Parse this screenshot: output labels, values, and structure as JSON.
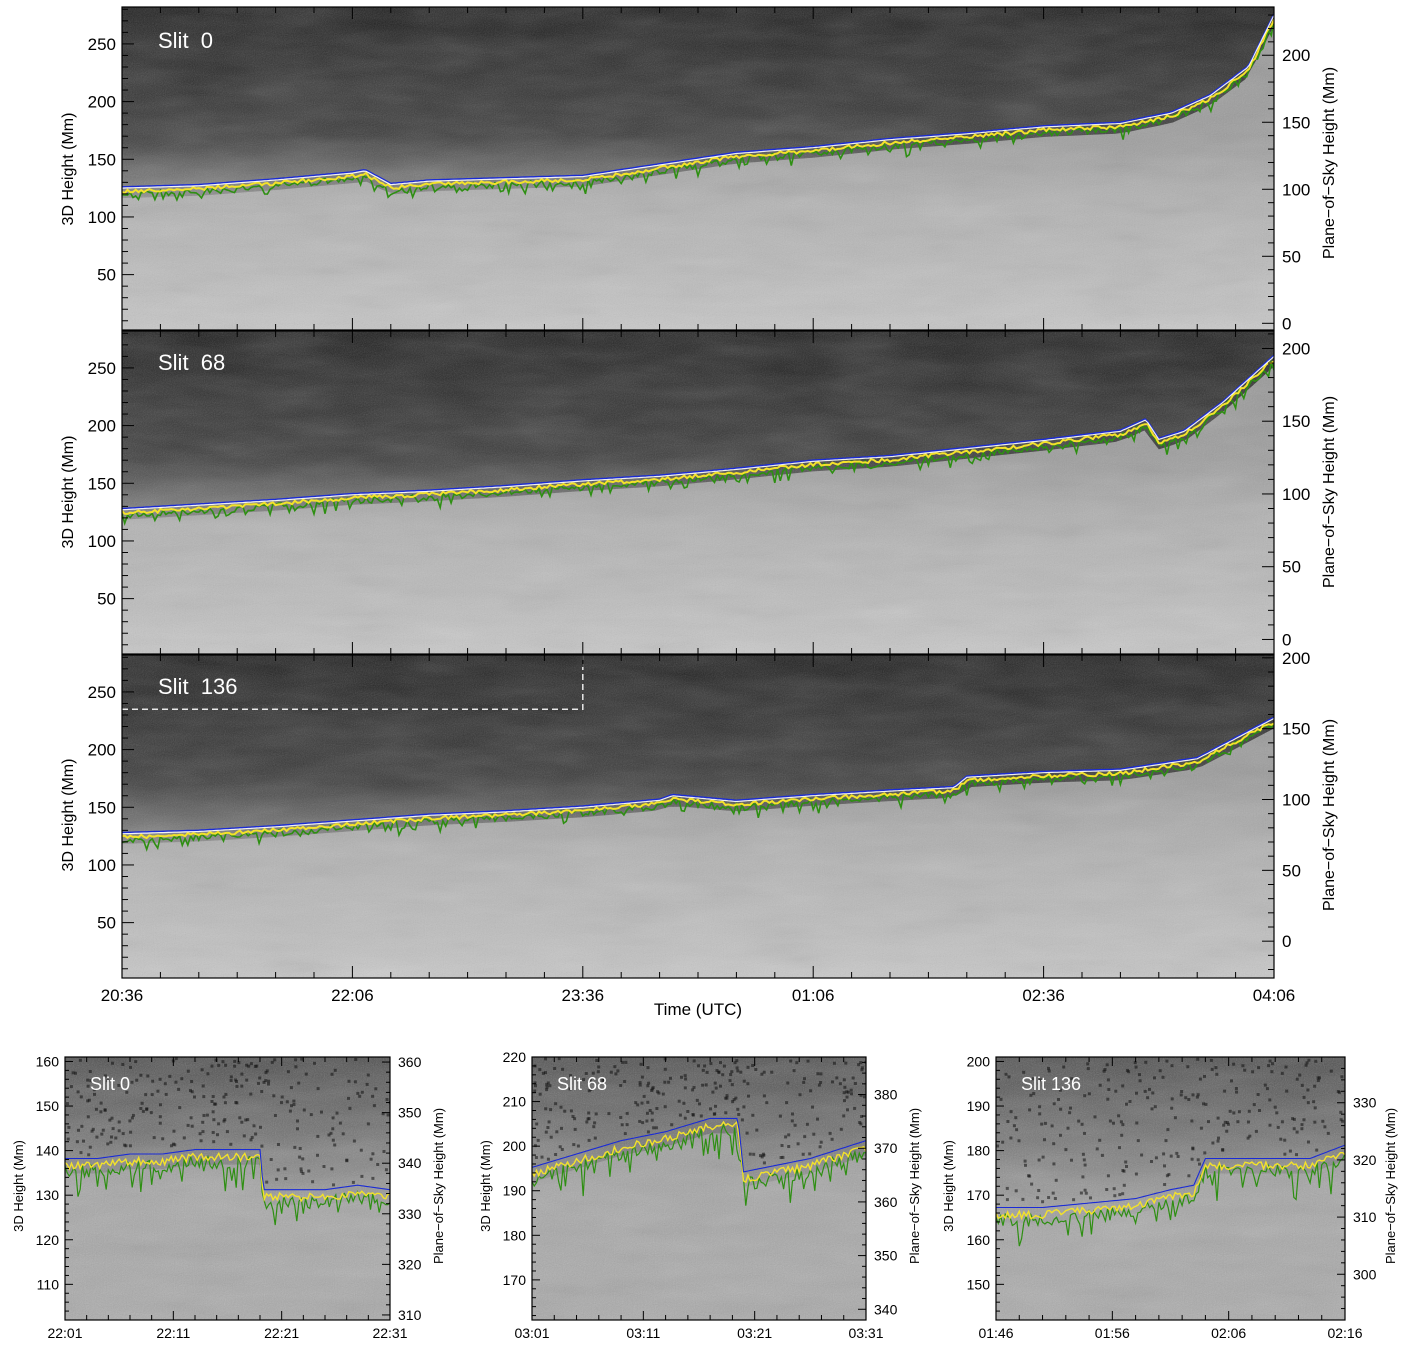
{
  "figure": {
    "time_axis_label": "Time (UTC)",
    "slit_prefix": "Slit",
    "colors": {
      "blue": "#1a2bd6",
      "yellow": "#f3e22a",
      "green": "#2e8f12",
      "white": "#ffffff",
      "dashed": "#e8e8e8"
    }
  },
  "chart_data": [
    {
      "type": "line",
      "panel": "top-1",
      "slit_label": "Slit  0",
      "xlabel": "",
      "ylabel": "3D Height (Mm)",
      "ylabel_right": "Plane−of−Sky Height (Mm)",
      "x_ticks": [
        "20:36",
        "22:06",
        "23:36",
        "01:06",
        "02:36",
        "04:06"
      ],
      "x_tick_labels_shown": false,
      "xlim_minutes": [
        0,
        450
      ],
      "ylim": [
        2,
        282
      ],
      "yticks": [
        50,
        100,
        150,
        200,
        250
      ],
      "right_ylim": [
        -5,
        236
      ],
      "right_yticks": [
        0,
        50,
        100,
        150,
        200
      ],
      "series": [],
      "x_minutes": [
        0,
        30,
        60,
        90,
        95,
        105,
        120,
        150,
        180,
        210,
        240,
        270,
        300,
        330,
        360,
        390,
        410,
        425,
        440,
        450
      ],
      "front_height_mm": [
        125,
        127,
        132,
        138,
        140,
        128,
        131,
        133,
        135,
        145,
        155,
        160,
        167,
        172,
        178,
        181,
        190,
        205,
        230,
        275
      ]
    },
    {
      "type": "line",
      "panel": "top-2",
      "slit_label": "Slit  68",
      "xlabel": "",
      "ylabel": "3D Height (Mm)",
      "ylabel_right": "Plane−of−Sky Height (Mm)",
      "x_ticks": [
        "20:36",
        "22:06",
        "23:36",
        "01:06",
        "02:36",
        "04:06"
      ],
      "x_tick_labels_shown": false,
      "xlim_minutes": [
        0,
        450
      ],
      "ylim": [
        2,
        282
      ],
      "yticks": [
        50,
        100,
        150,
        200,
        250
      ],
      "right_ylim": [
        -10,
        212
      ],
      "right_yticks": [
        0,
        50,
        100,
        150,
        200
      ],
      "series": [],
      "x_minutes": [
        0,
        30,
        60,
        90,
        120,
        150,
        180,
        210,
        240,
        270,
        300,
        330,
        360,
        390,
        400,
        405,
        415,
        430,
        450
      ],
      "front_height_mm": [
        127,
        131,
        135,
        140,
        143,
        147,
        152,
        156,
        162,
        169,
        173,
        180,
        187,
        195,
        205,
        188,
        195,
        220,
        260
      ]
    },
    {
      "type": "line",
      "panel": "top-3",
      "slit_label": "Slit  136",
      "xlabel": "Time (UTC)",
      "ylabel": "3D Height (Mm)",
      "ylabel_right": "Plane−of−Sky Height (Mm)",
      "x_ticks": [
        "20:36",
        "22:06",
        "23:36",
        "01:06",
        "02:36",
        "04:06"
      ],
      "x_tick_labels_shown": true,
      "xlim_minutes": [
        0,
        450
      ],
      "ylim": [
        2,
        282
      ],
      "yticks": [
        50,
        100,
        150,
        200,
        250
      ],
      "right_ylim": [
        -26,
        202
      ],
      "right_yticks": [
        0,
        50,
        100,
        150,
        200
      ],
      "series": [],
      "zoom_box_minutes": [
        0,
        180
      ],
      "zoom_box_height_mm": [
        235,
        282
      ],
      "x_minutes": [
        0,
        30,
        60,
        90,
        120,
        150,
        180,
        210,
        215,
        240,
        270,
        300,
        325,
        330,
        360,
        390,
        420,
        450
      ],
      "front_height_mm": [
        127,
        129,
        133,
        138,
        143,
        146,
        150,
        156,
        160,
        155,
        160,
        164,
        167,
        176,
        180,
        182,
        192,
        227
      ]
    },
    {
      "type": "line",
      "panel": "zoom-1",
      "slit_label": "Slit 0",
      "xlabel": "",
      "ylabel": "3D Height (Mm)",
      "ylabel_right": "Plane−of−Sky Height (Mm)",
      "x_ticks": [
        "22:01",
        "22:11",
        "22:21",
        "22:31"
      ],
      "xlim_minutes": [
        0,
        30
      ],
      "ylim": [
        102,
        161
      ],
      "yticks": [
        110,
        120,
        130,
        140,
        150,
        160
      ],
      "right_ylim": [
        309,
        361
      ],
      "right_yticks": [
        310,
        320,
        330,
        340,
        350,
        360
      ],
      "series": [],
      "x_minutes": [
        0,
        3,
        6,
        9,
        12,
        15,
        18,
        18.3,
        21,
        24,
        27,
        30
      ],
      "front_height_mm": [
        138,
        138,
        139,
        139,
        140,
        140,
        140,
        131,
        131,
        131,
        132,
        131
      ]
    },
    {
      "type": "line",
      "panel": "zoom-2",
      "slit_label": "Slit 68",
      "xlabel": "",
      "ylabel": "3D Height (Mm)",
      "ylabel_right": "Plane−of−Sky Height (Mm)",
      "x_ticks": [
        "03:01",
        "03:11",
        "03:21",
        "03:31"
      ],
      "xlim_minutes": [
        0,
        30
      ],
      "ylim": [
        161,
        220
      ],
      "yticks": [
        170,
        180,
        190,
        200,
        210,
        220
      ],
      "right_ylim": [
        338,
        387
      ],
      "right_yticks": [
        340,
        350,
        360,
        370,
        380
      ],
      "series": [],
      "x_minutes": [
        0,
        4,
        8,
        12,
        16,
        18.5,
        19,
        21,
        25,
        30
      ],
      "front_height_mm": [
        195,
        198,
        201,
        203,
        206,
        206,
        194,
        195,
        197,
        201
      ]
    },
    {
      "type": "line",
      "panel": "zoom-3",
      "slit_label": "Slit 136",
      "xlabel": "",
      "ylabel": "3D Height (Mm)",
      "ylabel_right": "Plane−of−Sky Height (Mm)",
      "x_ticks": [
        "01:46",
        "01:56",
        "02:06",
        "02:16"
      ],
      "xlim_minutes": [
        0,
        30
      ],
      "ylim": [
        142,
        201
      ],
      "yticks": [
        150,
        160,
        170,
        180,
        190,
        200
      ],
      "right_ylim": [
        292,
        338
      ],
      "right_yticks": [
        300,
        310,
        320,
        330
      ],
      "series": [],
      "x_minutes": [
        0,
        4,
        8,
        12,
        15,
        17,
        18,
        21,
        24,
        27,
        30
      ],
      "front_height_mm": [
        167,
        167,
        168,
        169,
        171,
        172,
        178,
        178,
        178,
        178,
        181
      ]
    }
  ]
}
